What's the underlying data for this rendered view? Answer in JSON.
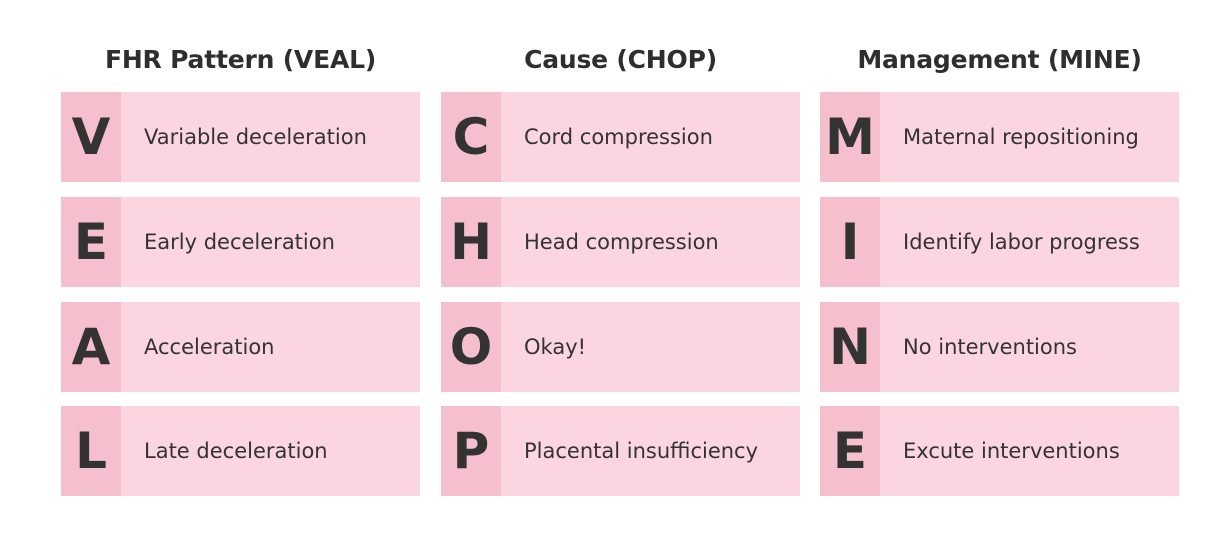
{
  "columns": [
    {
      "title": "FHR Pattern (VEAL)",
      "rows": [
        {
          "letter": "V",
          "text": "Variable deceleration"
        },
        {
          "letter": "E",
          "text": "Early deceleration"
        },
        {
          "letter": "A",
          "text": "Acceleration"
        },
        {
          "letter": "L",
          "text": "Late deceleration"
        }
      ]
    },
    {
      "title": "Cause (CHOP)",
      "rows": [
        {
          "letter": "C",
          "text": "Cord compression"
        },
        {
          "letter": "H",
          "text": "Head compression"
        },
        {
          "letter": "O",
          "text": "Okay!"
        },
        {
          "letter": "P",
          "text": "Placental insufficiency"
        }
      ]
    },
    {
      "title": "Management (MINE)",
      "rows": [
        {
          "letter": "M",
          "text": "Maternal repositioning"
        },
        {
          "letter": "I",
          "text": "Identify labor progress"
        },
        {
          "letter": "N",
          "text": "No interventions"
        },
        {
          "letter": "E",
          "text": "Excute interventions"
        }
      ]
    }
  ],
  "colors": {
    "row_background": "#fbd6e0",
    "letter_background": "#f6bfce",
    "text": "#333333",
    "page_background": "#ffffff"
  }
}
